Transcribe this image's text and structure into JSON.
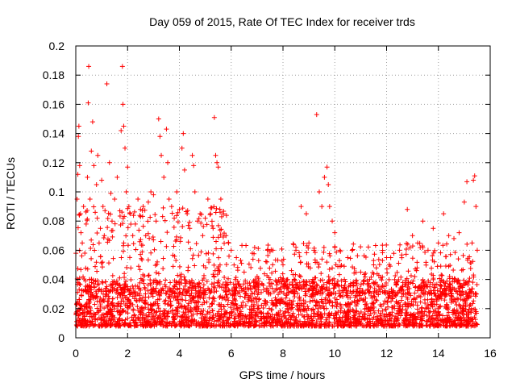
{
  "chart_data": {
    "type": "scatter",
    "title": "Day 059 of 2015, Rate Of TEC Index for receiver trds",
    "xlabel": "GPS time / hours",
    "ylabel": "ROTI / TECUs",
    "xlim": [
      0,
      16
    ],
    "ylim": [
      0,
      0.2
    ],
    "x_ticks": [
      0,
      2,
      4,
      6,
      8,
      10,
      12,
      14,
      16
    ],
    "x_tick_labels": [
      "0",
      "2",
      "4",
      "6",
      "8",
      "10",
      "12",
      "14",
      "16"
    ],
    "y_ticks": [
      0,
      0.02,
      0.04,
      0.06,
      0.08,
      0.1,
      0.12,
      0.14,
      0.16,
      0.18,
      0.2
    ],
    "y_tick_labels": [
      "0",
      "0.02",
      "0.04",
      "0.06",
      "0.08",
      "0.1",
      "0.12",
      "0.14",
      "0.16",
      "0.18",
      "0.2"
    ],
    "grid": true,
    "marker": "plus",
    "marker_color": "#ff0000",
    "series": [
      {
        "name": "ROTI",
        "points": [
          [
            0.05,
            0.095
          ],
          [
            0.08,
            0.112
          ],
          [
            0.1,
            0.138
          ],
          [
            0.12,
            0.145
          ],
          [
            0.15,
            0.118
          ],
          [
            0.18,
            0.085
          ],
          [
            0.2,
            0.072
          ],
          [
            0.25,
            0.065
          ],
          [
            0.3,
            0.09
          ],
          [
            0.35,
            0.058
          ],
          [
            0.4,
            0.078
          ],
          [
            0.45,
            0.11
          ],
          [
            0.48,
            0.161
          ],
          [
            0.5,
            0.186
          ],
          [
            0.55,
            0.095
          ],
          [
            0.6,
            0.128
          ],
          [
            0.65,
            0.148
          ],
          [
            0.7,
            0.118
          ],
          [
            0.75,
            0.086
          ],
          [
            0.8,
            0.105
          ],
          [
            0.85,
            0.125
          ],
          [
            0.9,
            0.065
          ],
          [
            0.95,
            0.075
          ],
          [
            1.0,
            0.108
          ],
          [
            1.05,
            0.09
          ],
          [
            1.1,
            0.07
          ],
          [
            1.2,
            0.174
          ],
          [
            1.3,
            0.12
          ],
          [
            1.35,
            0.099
          ],
          [
            1.4,
            0.08
          ],
          [
            1.5,
            0.095
          ],
          [
            1.6,
            0.11
          ],
          [
            1.7,
            0.087
          ],
          [
            1.75,
            0.142
          ],
          [
            1.8,
            0.186
          ],
          [
            1.82,
            0.16
          ],
          [
            1.85,
            0.145
          ],
          [
            1.9,
            0.13
          ],
          [
            1.95,
            0.1
          ],
          [
            2.0,
            0.117
          ],
          [
            2.05,
            0.09
          ],
          [
            2.1,
            0.085
          ],
          [
            2.2,
            0.07
          ],
          [
            2.3,
            0.078
          ],
          [
            2.4,
            0.095
          ],
          [
            2.5,
            0.083
          ],
          [
            2.6,
            0.09
          ],
          [
            2.7,
            0.07
          ],
          [
            2.8,
            0.093
          ],
          [
            2.9,
            0.1
          ],
          [
            3.0,
            0.098
          ],
          [
            3.1,
            0.08
          ],
          [
            3.2,
            0.15
          ],
          [
            3.25,
            0.138
          ],
          [
            3.3,
            0.125
          ],
          [
            3.4,
            0.11
          ],
          [
            3.5,
            0.143
          ],
          [
            3.55,
            0.12
          ],
          [
            3.6,
            0.095
          ],
          [
            3.7,
            0.09
          ],
          [
            3.8,
            0.082
          ],
          [
            3.9,
            0.1
          ],
          [
            4.0,
            0.088
          ],
          [
            4.1,
            0.13
          ],
          [
            4.15,
            0.14
          ],
          [
            4.2,
            0.115
          ],
          [
            4.3,
            0.085
          ],
          [
            4.4,
            0.075
          ],
          [
            4.5,
            0.125
          ],
          [
            4.55,
            0.118
          ],
          [
            4.6,
            0.1
          ],
          [
            4.7,
            0.08
          ],
          [
            4.8,
            0.085
          ],
          [
            4.9,
            0.07
          ],
          [
            5.0,
            0.082
          ],
          [
            5.1,
            0.095
          ],
          [
            5.2,
            0.085
          ],
          [
            5.3,
            0.075
          ],
          [
            5.35,
            0.151
          ],
          [
            5.4,
            0.125
          ],
          [
            5.45,
            0.12
          ],
          [
            5.5,
            0.117
          ],
          [
            5.6,
            0.095
          ],
          [
            5.7,
            0.085
          ],
          [
            5.8,
            0.07
          ],
          [
            5.9,
            0.065
          ],
          [
            6.0,
            0.06
          ],
          [
            6.2,
            0.055
          ],
          [
            6.5,
            0.045
          ],
          [
            7.0,
            0.042
          ],
          [
            7.5,
            0.04
          ],
          [
            8.0,
            0.05
          ],
          [
            8.5,
            0.06
          ],
          [
            8.7,
            0.09
          ],
          [
            8.9,
            0.085
          ],
          [
            9.0,
            0.065
          ],
          [
            9.2,
            0.06
          ],
          [
            9.3,
            0.153
          ],
          [
            9.4,
            0.1
          ],
          [
            9.5,
            0.09
          ],
          [
            9.6,
            0.11
          ],
          [
            9.7,
            0.117
          ],
          [
            9.75,
            0.105
          ],
          [
            9.8,
            0.09
          ],
          [
            9.9,
            0.08
          ],
          [
            10.0,
            0.072
          ],
          [
            10.2,
            0.06
          ],
          [
            10.5,
            0.055
          ],
          [
            11.0,
            0.045
          ],
          [
            11.5,
            0.05
          ],
          [
            12.0,
            0.055
          ],
          [
            12.5,
            0.06
          ],
          [
            12.8,
            0.088
          ],
          [
            13.0,
            0.07
          ],
          [
            13.2,
            0.065
          ],
          [
            13.4,
            0.08
          ],
          [
            13.6,
            0.06
          ],
          [
            13.8,
            0.075
          ],
          [
            14.0,
            0.065
          ],
          [
            14.2,
            0.085
          ],
          [
            14.4,
            0.07
          ],
          [
            14.6,
            0.068
          ],
          [
            14.8,
            0.072
          ],
          [
            15.0,
            0.093
          ],
          [
            15.1,
            0.107
          ],
          [
            15.3,
            0.065
          ],
          [
            15.35,
            0.108
          ],
          [
            15.4,
            0.111
          ],
          [
            15.45,
            0.09
          ],
          [
            15.5,
            0.06
          ]
        ],
        "baseline_band": {
          "x_range": [
            0,
            15.5
          ],
          "y_range": [
            0.008,
            0.04
          ],
          "note": "dense band of points concentrated between 0.01 and 0.04 across the full time range"
        }
      }
    ]
  }
}
